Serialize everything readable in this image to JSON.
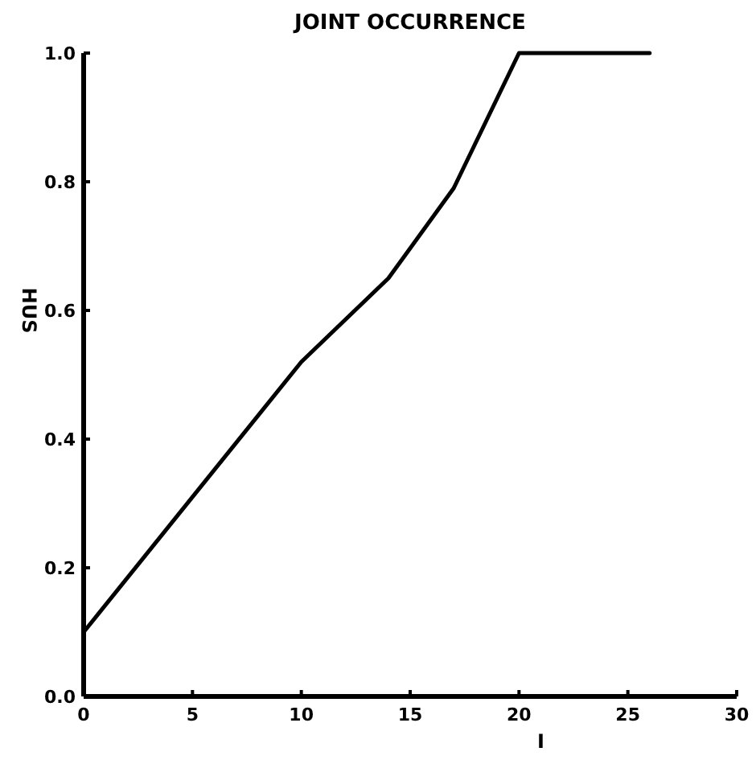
{
  "chart_data": {
    "type": "line",
    "title": "JOINT OCCURRENCE",
    "xlabel": "I",
    "ylabel": "HUS",
    "x": [
      0,
      10,
      14,
      17,
      20,
      26
    ],
    "series": [
      {
        "color": "#000000",
        "values": [
          0.1,
          0.52,
          0.65,
          0.79,
          1.0,
          1.0
        ]
      }
    ],
    "xlim": [
      0,
      30
    ],
    "xticks": [
      0,
      5,
      10,
      15,
      20,
      25,
      30
    ],
    "ylim": [
      0,
      1
    ],
    "yticks": [
      {
        "value": 0,
        "label": "0.0"
      },
      {
        "value": 0.2,
        "label": "0.2"
      },
      {
        "value": 0.4,
        "label": "0.4"
      },
      {
        "value": 0.6,
        "label": "0.6"
      },
      {
        "value": 0.8,
        "label": "0.8"
      },
      {
        "value": 1,
        "label": "1.0"
      }
    ],
    "grid": false,
    "marker": "none",
    "line_style": "solid"
  }
}
